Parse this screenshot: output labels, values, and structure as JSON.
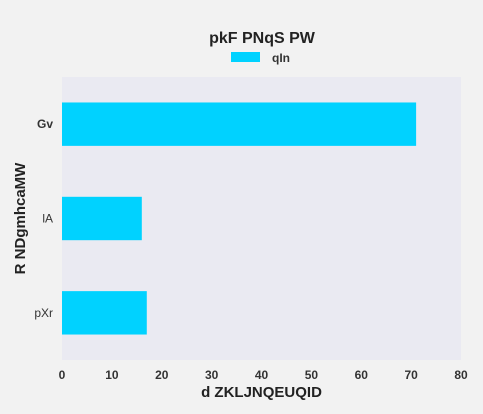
{
  "chart_data": {
    "type": "bar",
    "orientation": "horizontal",
    "title": "pkF PNqS PW",
    "xlabel": "d ZKLJNQEUQID",
    "ylabel": "R NDgmhcaMW",
    "categories": [
      "Gv",
      "lA",
      "pXr"
    ],
    "series": [
      {
        "name": "qIn",
        "values": [
          71,
          16,
          17
        ]
      }
    ],
    "xlim": [
      0,
      80
    ],
    "xticks": [
      0,
      10,
      20,
      30,
      40,
      50,
      60,
      70,
      80
    ],
    "grid": false,
    "legend_position": "top-center",
    "colors": {
      "bar": "#00d2ff",
      "plot_bg": "#eaeaf2",
      "page_bg": "#f2f2f2"
    }
  }
}
